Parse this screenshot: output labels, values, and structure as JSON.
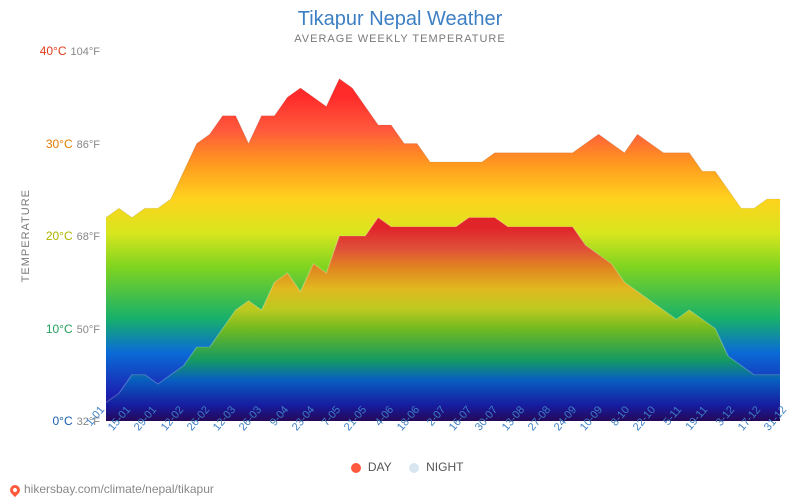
{
  "title": "Tikapur Nepal Weather",
  "subtitle": "AVERAGE WEEKLY TEMPERATURE",
  "yaxis_label": "TEMPERATURE",
  "footer_url": "hikersbay.com/climate/nepal/tikapur",
  "chart": {
    "type": "area",
    "ylim_c": [
      0,
      40
    ],
    "ytick_step_c": 10,
    "yticks": [
      {
        "c": "0°C",
        "f": "32°F",
        "color": "#1b5fb0"
      },
      {
        "c": "10°C",
        "f": "50°F",
        "color": "#23a05b"
      },
      {
        "c": "20°C",
        "f": "68°F",
        "color": "#b0b400"
      },
      {
        "c": "30°C",
        "f": "86°F",
        "color": "#e07b00"
      },
      {
        "c": "40°C",
        "f": "104°F",
        "color": "#e03c1a"
      }
    ],
    "x_labels": [
      "1-01",
      "15-01",
      "29-01",
      "12-02",
      "26-02",
      "12-03",
      "26-03",
      "9-04",
      "23-04",
      "7-05",
      "21-05",
      "4-06",
      "18-06",
      "2-07",
      "16-07",
      "30-07",
      "13-08",
      "27-08",
      "24-09",
      "10-09",
      "8-10",
      "22-10",
      "5-11",
      "19-11",
      "3-12",
      "17-12",
      "31-12"
    ],
    "x_label_color": "#3d7fc4",
    "x_label_fontsize": 11,
    "x_rotation_deg": -50,
    "series_day": {
      "label": "DAY",
      "legend_color": "#ff5a3c",
      "values": [
        22,
        23,
        22,
        23,
        23,
        24,
        27,
        30,
        31,
        33,
        33,
        30,
        33,
        33,
        35,
        36,
        35,
        34,
        37,
        36,
        34,
        32,
        32,
        30,
        30,
        28,
        28,
        28,
        28,
        28,
        29,
        29,
        29,
        29,
        29,
        29,
        29,
        30,
        31,
        30,
        29,
        31,
        30,
        29,
        29,
        29,
        27,
        27,
        25,
        23,
        23,
        24,
        24
      ]
    },
    "series_night": {
      "label": "NIGHT",
      "legend_color": "#d8e6f2",
      "values": [
        2,
        3,
        5,
        5,
        4,
        5,
        6,
        8,
        8,
        10,
        12,
        13,
        12,
        15,
        16,
        14,
        17,
        16,
        20,
        20,
        20,
        22,
        21,
        21,
        21,
        21,
        21,
        21,
        22,
        22,
        22,
        21,
        21,
        21,
        21,
        21,
        21,
        19,
        18,
        17,
        15,
        14,
        13,
        12,
        11,
        12,
        11,
        10,
        7,
        6,
        5,
        5,
        5
      ]
    },
    "background_color": "#ffffff",
    "title_color": "#3d7fc4",
    "title_fontsize": 20,
    "subtitle_color": "#7a7a7a",
    "subtitle_fontsize": 11,
    "gradient_stops": [
      {
        "t": 0,
        "color": "#2b0a5e"
      },
      {
        "t": 3,
        "color": "#1b1fb0"
      },
      {
        "t": 8,
        "color": "#0a6bd6"
      },
      {
        "t": 12,
        "color": "#18b06a"
      },
      {
        "t": 18,
        "color": "#7fd420"
      },
      {
        "t": 22,
        "color": "#d8e61e"
      },
      {
        "t": 26,
        "color": "#ffd21e"
      },
      {
        "t": 30,
        "color": "#ff9a1e"
      },
      {
        "t": 34,
        "color": "#ff5a3c"
      },
      {
        "t": 38,
        "color": "#ff2a2a"
      }
    ]
  }
}
